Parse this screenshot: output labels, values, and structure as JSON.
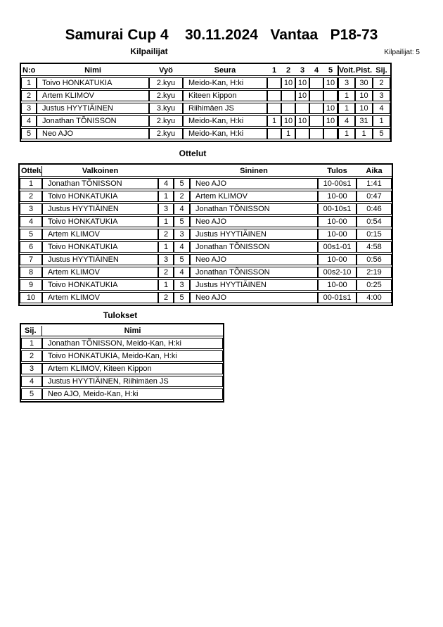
{
  "page": {
    "title": "Samurai Cup 4    30.11.2024   Vantaa   P18-73",
    "competitor_count_label": "Kilpailijat: 5"
  },
  "colors": {
    "background": "#ffffff",
    "border": "#000000",
    "text": "#000000"
  },
  "competitors_section": {
    "title": "Kilpailijat",
    "headers": {
      "no": "N:o",
      "name": "Nimi",
      "belt": "Vyö",
      "club": "Seura",
      "rounds": [
        "1",
        "2",
        "3",
        "4",
        "5"
      ],
      "wins": "Voit.",
      "points": "Pist.",
      "place": "Sij."
    },
    "rows": [
      {
        "no": "1",
        "name": "Toivo HONKATUKIA",
        "belt": "2.kyu",
        "club": "Meido-Kan, H:ki",
        "rounds": [
          "",
          "10",
          "10",
          "",
          "10"
        ],
        "wins": "3",
        "points": "30",
        "place": "2"
      },
      {
        "no": "2",
        "name": "Artem KLIMOV",
        "belt": "2.kyu",
        "club": "Kiteen Kippon",
        "rounds": [
          "",
          "",
          "10",
          "",
          ""
        ],
        "wins": "1",
        "points": "10",
        "place": "3"
      },
      {
        "no": "3",
        "name": "Justus HYYTIÄINEN",
        "belt": "3.kyu",
        "club": "Riihimäen JS",
        "rounds": [
          "",
          "",
          "",
          "",
          "10"
        ],
        "wins": "1",
        "points": "10",
        "place": "4"
      },
      {
        "no": "4",
        "name": "Jonathan TÕNISSON",
        "belt": "2.kyu",
        "club": "Meido-Kan, H:ki",
        "rounds": [
          "1",
          "10",
          "10",
          "",
          "10"
        ],
        "wins": "4",
        "points": "31",
        "place": "1"
      },
      {
        "no": "5",
        "name": "Neo AJO",
        "belt": "2.kyu",
        "club": "Meido-Kan, H:ki",
        "rounds": [
          "",
          "1",
          "",
          "",
          ""
        ],
        "wins": "1",
        "points": "1",
        "place": "5"
      }
    ]
  },
  "matches_section": {
    "title": "Ottelut",
    "headers": {
      "match": "Ottelu",
      "white": "Valkoinen",
      "blue": "Sininen",
      "result": "Tulos",
      "time": "Aika"
    },
    "rows": [
      {
        "no": "1",
        "white": "Jonathan TÕNISSON",
        "wnum": "4",
        "bnum": "5",
        "blue": "Neo AJO",
        "result": "10-00s1",
        "time": "1:41"
      },
      {
        "no": "2",
        "white": "Toivo HONKATUKIA",
        "wnum": "1",
        "bnum": "2",
        "blue": "Artem KLIMOV",
        "result": "10-00",
        "time": "0:47"
      },
      {
        "no": "3",
        "white": "Justus HYYTIÄINEN",
        "wnum": "3",
        "bnum": "4",
        "blue": "Jonathan TÕNISSON",
        "result": "00-10s1",
        "time": "0:46"
      },
      {
        "no": "4",
        "white": "Toivo HONKATUKIA",
        "wnum": "1",
        "bnum": "5",
        "blue": "Neo AJO",
        "result": "10-00",
        "time": "0:54"
      },
      {
        "no": "5",
        "white": "Artem KLIMOV",
        "wnum": "2",
        "bnum": "3",
        "blue": "Justus HYYTIÄINEN",
        "result": "10-00",
        "time": "0:15"
      },
      {
        "no": "6",
        "white": "Toivo HONKATUKIA",
        "wnum": "1",
        "bnum": "4",
        "blue": "Jonathan TÕNISSON",
        "result": "00s1-01",
        "time": "4:58"
      },
      {
        "no": "7",
        "white": "Justus HYYTIÄINEN",
        "wnum": "3",
        "bnum": "5",
        "blue": "Neo AJO",
        "result": "10-00",
        "time": "0:56"
      },
      {
        "no": "8",
        "white": "Artem KLIMOV",
        "wnum": "2",
        "bnum": "4",
        "blue": "Jonathan TÕNISSON",
        "result": "00s2-10",
        "time": "2:19"
      },
      {
        "no": "9",
        "white": "Toivo HONKATUKIA",
        "wnum": "1",
        "bnum": "3",
        "blue": "Justus HYYTIÄINEN",
        "result": "10-00",
        "time": "0:25"
      },
      {
        "no": "10",
        "white": "Artem KLIMOV",
        "wnum": "2",
        "bnum": "5",
        "blue": "Neo AJO",
        "result": "00-01s1",
        "time": "4:00"
      }
    ]
  },
  "results_section": {
    "title": "Tulokset",
    "headers": {
      "place": "Sij.",
      "name": "Nimi"
    },
    "rows": [
      {
        "place": "1",
        "name": "Jonathan TÕNISSON, Meido-Kan, H:ki"
      },
      {
        "place": "2",
        "name": "Toivo HONKATUKIA, Meido-Kan, H:ki"
      },
      {
        "place": "3",
        "name": "Artem KLIMOV, Kiteen Kippon"
      },
      {
        "place": "4",
        "name": "Justus HYYTIÄINEN, Riihimäen JS"
      },
      {
        "place": "5",
        "name": "Neo AJO, Meido-Kan, H:ki"
      }
    ]
  }
}
